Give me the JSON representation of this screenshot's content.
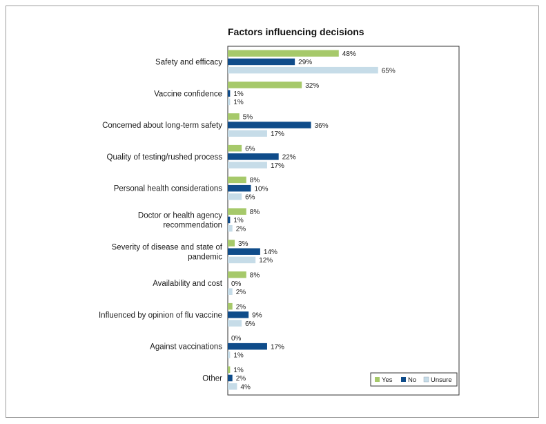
{
  "chart_data": {
    "type": "bar",
    "orientation": "horizontal",
    "title": "Factors influencing decisions",
    "categories": [
      [
        "Safety and efficacy"
      ],
      [
        "Vaccine confidence"
      ],
      [
        "Concerned about long-term safety"
      ],
      [
        "Quality of testing/rushed process"
      ],
      [
        "Personal health considerations"
      ],
      [
        "Doctor or health agency",
        "recommendation"
      ],
      [
        "Severity of disease and state of",
        "pandemic"
      ],
      [
        "Availability and cost"
      ],
      [
        "Influenced by opinion of flu vaccine"
      ],
      [
        "Against vaccinations"
      ],
      [
        "Other"
      ]
    ],
    "series": [
      {
        "name": "Yes",
        "color": "#a6c96a",
        "values": [
          48,
          32,
          5,
          6,
          8,
          8,
          3,
          8,
          2,
          0,
          1
        ]
      },
      {
        "name": "No",
        "color": "#0f4c8a",
        "values": [
          29,
          1,
          36,
          22,
          10,
          1,
          14,
          0,
          9,
          17,
          2
        ]
      },
      {
        "name": "Unsure",
        "color": "#c6dce8",
        "values": [
          65,
          1,
          17,
          17,
          6,
          2,
          12,
          2,
          6,
          1,
          4
        ]
      }
    ],
    "value_suffix": "%",
    "xlim": [
      0,
      100
    ],
    "legend_position": "bottom-right",
    "grid": false
  }
}
